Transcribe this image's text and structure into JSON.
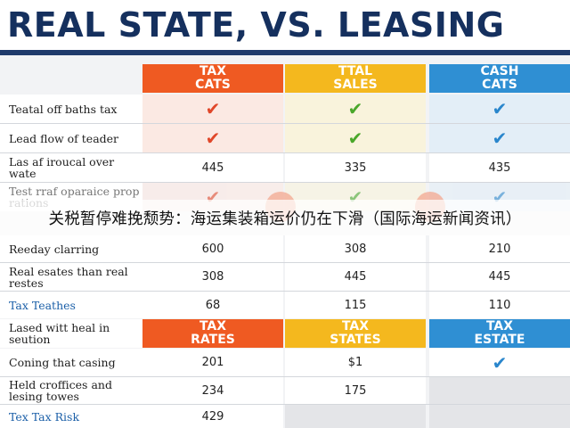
{
  "title": "REAL STATE, VS. LEASING",
  "headers": [
    {
      "line1": "TAX",
      "line2": "CATS"
    },
    {
      "line1": "TTAL",
      "line2": "SALES"
    },
    {
      "line1": "CASH",
      "line2": "CATS"
    }
  ],
  "rows": [
    {
      "label": "Teatal off baths tax",
      "c1": "✔",
      "c2": "✔",
      "c3": "✔"
    },
    {
      "label": "Lead flow of teader",
      "c1": "✔",
      "c2": "✔",
      "c3": "✔"
    },
    {
      "label": "Las af iroucal over wate",
      "c1": "445",
      "c2": "335",
      "c3": "435"
    },
    {
      "label": "Test rraf oparaice prop rations",
      "c1": "✔",
      "c2": "✔",
      "c3": "✔"
    },
    {
      "label": "Reeday clarring",
      "c1": "600",
      "c2": "308",
      "c3": "210"
    },
    {
      "label": "Real esates than real restes",
      "c1": "308",
      "c2": "445",
      "c3": "445"
    },
    {
      "label": "Tax Teathes",
      "c1": "68",
      "c2": "115",
      "c3": "110"
    }
  ],
  "headers2": [
    {
      "label": "Lased witt heal in seution"
    },
    {
      "line1": "TAX",
      "line2": "RATES"
    },
    {
      "line1": "TAX",
      "line2": "STATES"
    },
    {
      "line1": "TAX",
      "line2": "ESTATE"
    }
  ],
  "rows2": [
    {
      "label": "Coning that casing",
      "c1": "201",
      "c2": "$1",
      "c3": "✔"
    },
    {
      "label": "Held croffices and lesing towes",
      "c1": "234",
      "c2": "175",
      "c3": ""
    },
    {
      "label": "Tex Tax Risk",
      "c1": "429",
      "c2": "",
      "c3": ""
    }
  ],
  "overlay_caption": "关税暂停难挽颓势：海运集装箱运价仍在下滑（国际海运新闻资讯）",
  "colors": {
    "orange": "#ef5a22",
    "yellow": "#f4b81e",
    "blue": "#2f8fd3",
    "navy": "#15305e"
  }
}
